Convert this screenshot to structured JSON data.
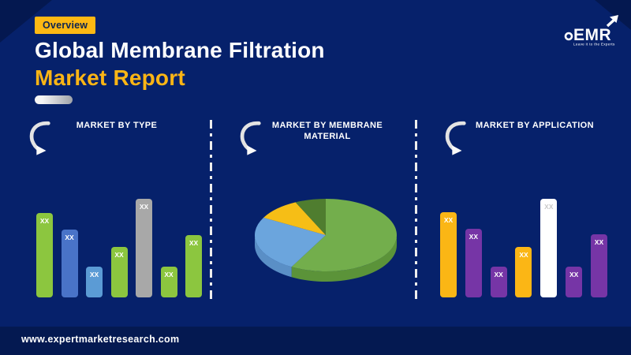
{
  "page": {
    "background_color": "#06216B",
    "accent_color": "#FDB813",
    "footer_url": "www.expertmarketresearch.com"
  },
  "header": {
    "badge_label": "Overview",
    "title_line1": "Global Membrane Filtration",
    "title_line2": "Market Report"
  },
  "logo": {
    "text": "EMR",
    "tagline": "Leave it to the Experts"
  },
  "sections": [
    {
      "label": "MARKET BY TYPE"
    },
    {
      "label": "MARKET BY MEMBRANE MATERIAL"
    },
    {
      "label": "MARKET BY APPLICATION"
    }
  ],
  "chart_data": [
    {
      "type": "bar",
      "title": "MARKET BY TYPE",
      "categories": [
        "",
        "",
        "",
        "",
        "",
        "",
        ""
      ],
      "values": [
        107,
        86,
        39,
        64,
        125,
        39,
        79
      ],
      "value_note": "bar value labels are masked as XX in source; values are relative pixel heights (max 132)",
      "bar_labels": [
        "XX",
        "XX",
        "XX",
        "XX",
        "XX",
        "XX",
        "XX"
      ],
      "colors": [
        "#8CC63F",
        "#4973C8",
        "#5B9BD5",
        "#8CC63F",
        "#A8A8A8",
        "#8CC63F",
        "#8CC63F"
      ],
      "label_colors": [
        "#FFFFFF",
        "#FFFFFF",
        "#FFFFFF",
        "#FFFFFF",
        "#FFFFFF",
        "#FFFFFF",
        "#FFFFFF"
      ],
      "grid": false,
      "axes_visible": false
    },
    {
      "type": "pie",
      "title": "MARKET BY MEMBRANE MATERIAL",
      "style": "3d",
      "start_angle_deg": 0,
      "direction": "clockwise",
      "slices": [
        {
          "name": "green-slice",
          "percent": 58,
          "color": "#73AE4C",
          "side_color": "#5B9339"
        },
        {
          "name": "blue-slice",
          "percent": 25,
          "color": "#6BA5DD",
          "side_color": "#5A8FC6"
        },
        {
          "name": "yellow-slice",
          "percent": 10,
          "color": "#F6BE16",
          "side_color": "#D4A210"
        },
        {
          "name": "dark-green-slice",
          "percent": 7,
          "color": "#4F7D2F",
          "side_color": "#3F6525"
        }
      ],
      "value_note": "no labels shown in source; percents estimated from slice angles"
    },
    {
      "type": "bar",
      "title": "MARKET BY APPLICATION",
      "categories": [
        "",
        "",
        "",
        "",
        "",
        "",
        ""
      ],
      "values": [
        108,
        87,
        39,
        64,
        125,
        39,
        80
      ],
      "value_note": "bar value labels are masked as XX in source; values are relative pixel heights (max 132)",
      "bar_labels": [
        "XX",
        "XX",
        "XX",
        "XX",
        "XX",
        "XX",
        "XX"
      ],
      "colors": [
        "#FBB615",
        "#7635A6",
        "#7635A6",
        "#FBB615",
        "#FFFFFF",
        "#7635A6",
        "#7635A6"
      ],
      "label_colors": [
        "#FFFFFF",
        "#FFFFFF",
        "#FFFFFF",
        "#FFFFFF",
        "#C9C9C9",
        "#FFFFFF",
        "#FFFFFF"
      ],
      "grid": false,
      "axes_visible": false
    }
  ]
}
